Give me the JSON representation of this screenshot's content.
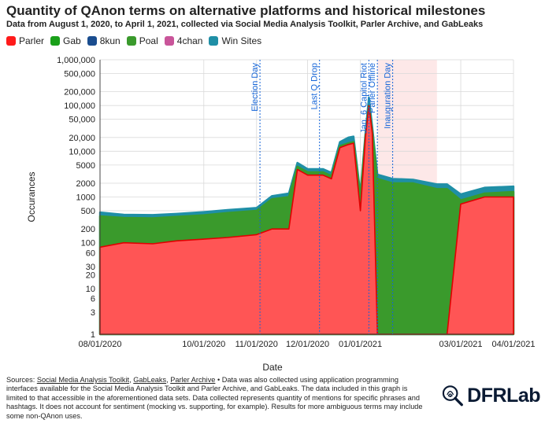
{
  "title": "Quantity of QAnon terms on alternative platforms and historical milestones",
  "subtitle": "Data from August 1, 2020, to April 1, 2021, collected via Social Media Analysis Toolkit, Parler Archive, and GabLeaks",
  "footer": {
    "prefix": "Sources: ",
    "source1": "Social Media Analysis Toolkit",
    "sep1": ", ",
    "source2": "GabLeaks",
    "sep2": ", ",
    "source3": "Parler Archive",
    "rest": " • Data was also collected using application programming interfaces available for the Social Media Analysis Toolkit and Parler Archive, and GabLeaks. The data included in this graph is limited to that accessible in the aforementioned data sets. Data collected represents quantity of mentions for specific phrases and hashtags. It does not account for sentiment (mocking vs. supporting, for example). Results for more ambiguous terms may include some non-QAnon uses."
  },
  "logo": {
    "text": "DFRLab",
    "icon": "fingerprint-magnifier-icon"
  },
  "chart_data": {
    "type": "area",
    "title": "Quantity of QAnon terms on alternative platforms and historical milestones",
    "xlabel": "Date",
    "ylabel": "Occurances",
    "y_scale": "log",
    "ylim": [
      1,
      1000000
    ],
    "xlim": [
      "2020-08-01",
      "2021-04-01"
    ],
    "stacked": true,
    "y_ticks": [
      1,
      3,
      6,
      10,
      20,
      30,
      60,
      100,
      200,
      500,
      1000,
      2000,
      5000,
      10000,
      20000,
      50000,
      100000,
      200000,
      500000,
      1000000
    ],
    "y_tick_labels": [
      "1",
      "3",
      "6",
      "10",
      "20",
      "30",
      "60",
      "100",
      "200",
      "500",
      "1000",
      "2000",
      "5000",
      "10,000",
      "20,000",
      "50,000",
      "100,000",
      "200,000",
      "500,000",
      "1,000,000"
    ],
    "x_ticks": [
      "2020-08-01",
      "2020-10-01",
      "2020-11-01",
      "2020-12-01",
      "2021-01-01",
      "2021-03-01",
      "2021-04-01"
    ],
    "x_tick_labels": [
      "08/01/2020",
      "10/01/2020",
      "11/01/2020",
      "12/01/2020",
      "01/01/2021",
      "03/01/2021",
      "04/01/2021"
    ],
    "grid": true,
    "legend_position": "top-left",
    "x": [
      "2020-08-01",
      "2020-08-15",
      "2020-09-01",
      "2020-09-15",
      "2020-10-01",
      "2020-10-15",
      "2020-11-01",
      "2020-11-10",
      "2020-11-20",
      "2020-11-25",
      "2020-12-01",
      "2020-12-10",
      "2020-12-15",
      "2020-12-20",
      "2020-12-25",
      "2020-12-28",
      "2021-01-01",
      "2021-01-04",
      "2021-01-06",
      "2021-01-08",
      "2021-01-11",
      "2021-01-20",
      "2021-02-01",
      "2021-02-15",
      "2021-02-21",
      "2021-03-01",
      "2021-03-15",
      "2021-04-01"
    ],
    "series": [
      {
        "name": "Parler",
        "color": "#ff1a1a",
        "values": [
          80,
          100,
          95,
          110,
          120,
          130,
          150,
          200,
          200,
          4000,
          3000,
          3000,
          2500,
          12000,
          14000,
          15000,
          500,
          20000,
          100000,
          25000,
          0,
          0,
          0,
          0,
          0,
          700,
          1000,
          1000
        ]
      },
      {
        "name": "Gab",
        "color": "#1aa01a",
        "values": [
          0,
          0,
          0,
          0,
          0,
          0,
          0,
          0,
          0,
          0,
          0,
          0,
          0,
          0,
          0,
          0,
          0,
          0,
          0,
          0,
          0,
          0,
          0,
          0,
          0,
          0,
          0,
          0
        ]
      },
      {
        "name": "8kun",
        "color": "#1a4d8f",
        "values": [
          0,
          0,
          0,
          0,
          0,
          0,
          0,
          0,
          0,
          0,
          0,
          0,
          0,
          0,
          0,
          0,
          0,
          0,
          0,
          0,
          0,
          0,
          0,
          0,
          0,
          0,
          0,
          0
        ]
      },
      {
        "name": "Poal",
        "color": "#3a9a2c",
        "values": [
          300,
          250,
          250,
          260,
          280,
          320,
          350,
          700,
          800,
          600,
          500,
          500,
          400,
          1000,
          1000,
          1000,
          500,
          800,
          1500,
          1000,
          2500,
          2000,
          2000,
          1500,
          1500,
          150,
          200,
          300
        ]
      },
      {
        "name": "4chan",
        "color": "#c9559a",
        "values": [
          0,
          0,
          0,
          0,
          0,
          0,
          0,
          0,
          0,
          0,
          0,
          0,
          0,
          0,
          0,
          0,
          0,
          0,
          0,
          0,
          0,
          0,
          0,
          0,
          0,
          0,
          0,
          0
        ]
      },
      {
        "name": "Win Sites",
        "color": "#1f8fa6",
        "values": [
          80,
          60,
          60,
          60,
          70,
          70,
          80,
          150,
          200,
          1000,
          600,
          600,
          500,
          3000,
          5000,
          5000,
          200,
          4000,
          50000,
          8000,
          600,
          500,
          400,
          400,
          400,
          300,
          400,
          400
        ]
      }
    ],
    "milestones": [
      {
        "label": "Election Day",
        "date": "2020-11-03"
      },
      {
        "label": "Last Q Drop",
        "date": "2020-12-08"
      },
      {
        "label": "Jan. 6 Capitol Riot",
        "date": "2021-01-06"
      },
      {
        "label": "Inauguration Day",
        "date": "2021-01-20"
      },
      {
        "label": "Parler Offline",
        "date": "2021-01-11"
      }
    ],
    "shaded_range": [
      "2021-01-11",
      "2021-02-15"
    ]
  }
}
